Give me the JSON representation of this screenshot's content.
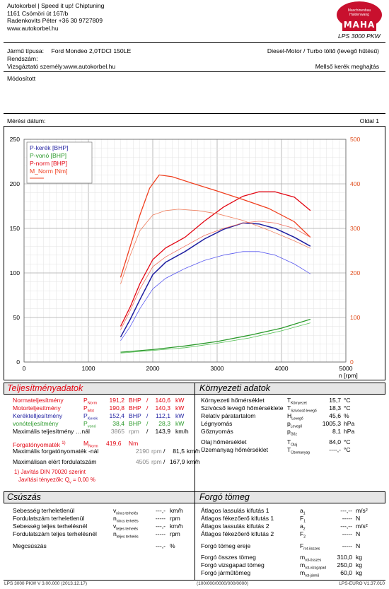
{
  "header": {
    "company_lines": [
      "Autokorbel | Speed it up! Chiptuning",
      "1161 Csömöri út 167/b",
      "Radenkovits Péter +36 30 9727809",
      "www.autokorbel.hu"
    ],
    "logo_text": "MAHA",
    "logo_ring_text": "Maschinenbau Haldenwang",
    "product": "LPS 3000 PKW"
  },
  "vehicle": {
    "type_label": "Jármű típusa:",
    "type_value": "Ford Mondeo 2,0TDCI 150LE",
    "plate_label": "Rendszám:",
    "tester_label": "Vizsgáztató személy:www.autokorbel.hu",
    "engine": "Diesel-Motor / Turbo töltő (levegő hűtésű)",
    "drive": "Mellső kerék meghajtás",
    "modified": "Módosított",
    "date_label": "Mérési dátum:",
    "page": "Oldal 1"
  },
  "colors": {
    "p_wheel": "#1e1ea0",
    "p_loss": "#2b9a2b",
    "p_norm": "#e30613",
    "m_norm": "#f04020",
    "p_wheel_light": "#5a5af0",
    "p_loss_light": "#55c055",
    "p_norm_light": "#f07060",
    "m_norm_light": "#f08060"
  },
  "chart_data": {
    "type": "line",
    "legend": [
      "P-kerék [BHP]",
      "P-vonó [BHP]",
      "P-norm [BHP]",
      "M_Norm [Nm]"
    ],
    "legend_placement": "top-left",
    "xlabel": "n [rpm]",
    "xlim": [
      0,
      5000
    ],
    "xticks": [
      0,
      1000,
      2000,
      3000,
      4000,
      5000
    ],
    "ylim_left": [
      0,
      250
    ],
    "yticks_left": [
      0,
      50,
      100,
      150,
      200,
      250
    ],
    "ylim_right": [
      0,
      500
    ],
    "yticks_right": [
      0,
      100,
      200,
      300,
      400,
      500
    ],
    "grid": true,
    "series": [
      {
        "name": "P-norm [BHP]",
        "axis": "left",
        "x": [
          1500,
          1650,
          1800,
          2000,
          2200,
          2500,
          2800,
          3100,
          3400,
          3650,
          3900,
          4200,
          4450
        ],
        "y": [
          40,
          62,
          88,
          115,
          128,
          140,
          158,
          174,
          186,
          191,
          191,
          185,
          170
        ]
      },
      {
        "name": "P-kerék [BHP]",
        "axis": "left",
        "x": [
          1500,
          1650,
          1800,
          2000,
          2200,
          2500,
          2800,
          3100,
          3400,
          3650,
          3900,
          4200,
          4450
        ],
        "y": [
          28,
          48,
          70,
          98,
          112,
          124,
          138,
          149,
          156,
          155,
          150,
          140,
          130
        ]
      },
      {
        "name": "P-vonó [BHP]",
        "axis": "left",
        "x": [
          1500,
          2000,
          2500,
          3000,
          3500,
          4000,
          4450
        ],
        "y": [
          11,
          14,
          18,
          23,
          30,
          38,
          48
        ]
      },
      {
        "name": "M_Norm [Nm]",
        "axis": "right",
        "x": [
          1500,
          1650,
          1800,
          1950,
          2100,
          2300,
          2600,
          3000,
          3400,
          3800,
          4200,
          4450
        ],
        "y": [
          190,
          260,
          330,
          390,
          420,
          416,
          402,
          384,
          365,
          345,
          315,
          280
        ]
      },
      {
        "name": "P-kerék (cmp)",
        "axis": "left",
        "x": [
          1500,
          1650,
          1800,
          2000,
          2200,
          2500,
          2800,
          3100,
          3400,
          3650,
          3900,
          4200,
          4450
        ],
        "y": [
          24,
          40,
          60,
          82,
          94,
          105,
          114,
          120,
          124,
          124,
          120,
          110,
          99
        ]
      },
      {
        "name": "P-norm (cmp)",
        "axis": "left",
        "x": [
          1500,
          1650,
          1800,
          2000,
          2200,
          2500,
          2800,
          3100,
          3400,
          3650,
          3900,
          4200,
          4450
        ],
        "y": [
          36,
          58,
          82,
          107,
          118,
          130,
          142,
          150,
          156,
          158,
          156,
          150,
          140
        ]
      },
      {
        "name": "P-vonó (cmp)",
        "axis": "left",
        "x": [
          1500,
          2000,
          2500,
          3000,
          3500,
          4000,
          4450
        ],
        "y": [
          10,
          13,
          16,
          21,
          27,
          35,
          44
        ]
      },
      {
        "name": "M_Norm (cmp)",
        "axis": "right",
        "x": [
          1500,
          1650,
          1800,
          2000,
          2200,
          2400,
          2700,
          3000,
          3400,
          3800,
          4200,
          4450
        ],
        "y": [
          175,
          240,
          295,
          330,
          340,
          343,
          340,
          333,
          318,
          296,
          272,
          255
        ]
      }
    ]
  },
  "performance": {
    "title": "Teljesítményadatok",
    "rows": [
      {
        "label": "Normateljesítmény",
        "sup": "1)",
        "sym": "P",
        "sub": "Norm",
        "v1": "191,2",
        "u1": "BHP",
        "sep": "/",
        "v2": "140,6",
        "u2": "kW"
      },
      {
        "label": "Motorteljesítmény",
        "sup": "",
        "sym": "P",
        "sub": "Mot",
        "v1": "190,8",
        "u1": "BHP",
        "sep": "/",
        "v2": "140,3",
        "u2": "kW"
      },
      {
        "label": "Keréktelljesítmény",
        "sup": "",
        "sym": "P",
        "sub": "Kerek",
        "v1": "152,4",
        "u1": "BHP",
        "sep": "/",
        "v2": "112,1",
        "u2": "kW"
      },
      {
        "label": "vonóteljesítmény",
        "sup": "",
        "sym": "P",
        "sub": "vonó",
        "v1": "38,4",
        "u1": "BHP",
        "sep": "/",
        "v2": "28,3",
        "u2": "kW"
      },
      {
        "label": "Maximális teljesítmény …nál",
        "sup": "",
        "sym": "",
        "sub": "",
        "v1": "3865",
        "u1": "rpm",
        "sep": "/",
        "v2": "143,9",
        "u2": "km/h"
      }
    ],
    "torque_label": "Forgatónyomaték",
    "torque_sup": "1)",
    "torque_sym": "M",
    "torque_sub": "Norm",
    "torque_value": "419,6",
    "torque_unit": "Nm",
    "max_torque_label": "Maximális forgatónyomaték -nál",
    "max_torque_rpm": "2190",
    "max_torque_rpm_unit": "rpm",
    "max_torque_speed": "81,5",
    "max_torque_speed_unit": "km/h",
    "max_rpm_label": "Maximálisan elért fordulatszám",
    "max_rpm_value": "4505",
    "max_rpm_unit": "rpm",
    "max_rpm_speed": "167,9",
    "max_rpm_speed_unit": "km/h",
    "note1": "1) Javítás DIN 70020 szerint",
    "note2": "Javítási tényezők: Q",
    "note2_sub": "v",
    "note2_value": " =    0,00 %"
  },
  "environment": {
    "title": "Környezeti adatok",
    "rows": [
      {
        "label": "Környezeti hőmérséklet",
        "sym": "T",
        "sub": "Környezet",
        "value": "15,7",
        "unit": "°C"
      },
      {
        "label": "Szívócső levegő hőmérséklete",
        "sym": "T",
        "sub": "Szívócső levegő",
        "value": "18,3",
        "unit": "°C"
      },
      {
        "label": "Relatív páratartalom",
        "sym": "H",
        "sub": "Levegő",
        "value": "45,6",
        "unit": "%"
      },
      {
        "label": "Légnyomás",
        "sym": "p",
        "sub": "Levegő",
        "value": "1005,3",
        "unit": "hPa"
      },
      {
        "label": "Gőznyomás",
        "sym": "p",
        "sub": "Gőz",
        "value": "8,1",
        "unit": "hPa"
      },
      {
        "label": "Olaj hőmérséklet",
        "sym": "T",
        "sub": "Olaj",
        "value": "84,0",
        "unit": "°C"
      },
      {
        "label": "Üzemanyag hőmérséklet",
        "sym": "T",
        "sub": "Üzemanyag",
        "value": "----,-",
        "unit": "°C"
      }
    ]
  },
  "slip": {
    "title": "Csúszás",
    "rows": [
      {
        "label": "Sebesség terheletlenül",
        "sym": "v",
        "sub": "nincs terhelés",
        "value": "---,-",
        "unit": "km/h"
      },
      {
        "label": "Fordulatszám terheletlenül",
        "sym": "n",
        "sub": "nincs terhelés",
        "value": "-----",
        "unit": "rpm"
      },
      {
        "label": "Sebesség teljes terhelésnél",
        "sym": "v",
        "sub": "teljes terhelés",
        "value": "---,-",
        "unit": "km/h"
      },
      {
        "label": "Fordulatszám teljes terhelésnél",
        "sym": "n",
        "sub": "teljes terhelés",
        "value": "-----",
        "unit": "rpm"
      },
      {
        "label": "Megcsúszás",
        "sym": "",
        "sub": "",
        "value": "---,-",
        "unit": "%"
      }
    ]
  },
  "mass": {
    "title": "Forgó tömeg",
    "rows": [
      {
        "label": "Átlagos lassulás kifutás 1",
        "sym": "a",
        "sub": "1",
        "value": "---,--",
        "unit": "m/s²"
      },
      {
        "label": "Átlagos fékezőerő kifutás 1",
        "sym": "F",
        "sub": "1",
        "value": "-----",
        "unit": "N"
      },
      {
        "label": "Átlagos lassulás kifutás 2",
        "sym": "a",
        "sub": "2",
        "value": "---,--",
        "unit": "m/s²"
      },
      {
        "label": "Átlagos fékezőerő kifutás 2",
        "sym": "F",
        "sub": "2",
        "value": "-----",
        "unit": "N"
      },
      {
        "label": "Forgó tömeg ereje",
        "sym": "F",
        "sub": "rot-összes",
        "value": "-----",
        "unit": "N"
      },
      {
        "label": "Forgó összes tömeg",
        "sym": "m",
        "sub": "rot-összes",
        "value": "310,0",
        "unit": "kg"
      },
      {
        "label": "Forgó vizsgapad tömeg",
        "sym": "m",
        "sub": "rot-vizsgapad",
        "value": "250,0",
        "unit": "kg"
      },
      {
        "label": "Forgó járműtömeg",
        "sym": "m",
        "sub": "rot-jármű",
        "value": "60,0",
        "unit": "kg"
      }
    ]
  },
  "footer": {
    "left": "LPS 3000 PKW V 3.00.000 (2013.12.17)",
    "center": "(100/000/0000/000/0000)",
    "right": "LPS-EURO V1.37.010"
  }
}
